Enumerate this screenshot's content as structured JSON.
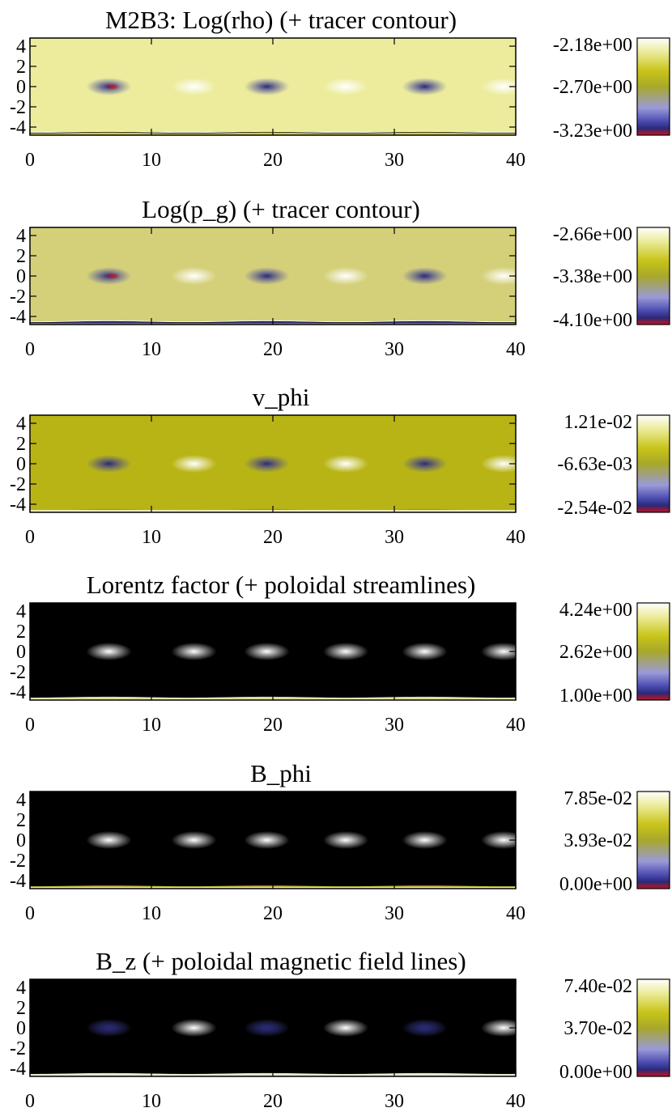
{
  "colormap": [
    "#c8101a",
    "#2a2a7a",
    "#4a4ab0",
    "#9a9ad8",
    "#a8a82a",
    "#c8c41a",
    "#ecec9c",
    "#ffffff"
  ],
  "chart_data": [
    {
      "type": "heatmap",
      "title": "M2B3: Log(rho) (+ tracer contour)",
      "xlabel": "",
      "ylabel": "",
      "xlim": [
        0,
        40
      ],
      "ylim": [
        -4.8,
        4.8
      ],
      "xticks": [
        "0",
        "10",
        "20",
        "30",
        "40"
      ],
      "yticks": [
        "4",
        "2",
        "0",
        "-2",
        "-4"
      ],
      "colorbar": {
        "min": -3.23,
        "max": -2.18,
        "labels": [
          "-2.18e+00",
          "-2.70e+00",
          "-3.23e+00"
        ]
      },
      "background": "#ecec9c",
      "overlay": "tracer contour"
    },
    {
      "type": "heatmap",
      "title": "Log(p_g) (+ tracer contour)",
      "xlabel": "",
      "ylabel": "",
      "xlim": [
        0,
        40
      ],
      "ylim": [
        -4.8,
        4.8
      ],
      "xticks": [
        "0",
        "10",
        "20",
        "30",
        "40"
      ],
      "yticks": [
        "4",
        "2",
        "0",
        "-2",
        "-4"
      ],
      "colorbar": {
        "min": -4.1,
        "max": -2.66,
        "labels": [
          "-2.66e+00",
          "-3.38e+00",
          "-4.10e+00"
        ]
      },
      "background": "#d4d07a",
      "overlay": "tracer contour"
    },
    {
      "type": "heatmap",
      "title": "v_phi",
      "xlabel": "",
      "ylabel": "",
      "xlim": [
        0,
        40
      ],
      "ylim": [
        -4.8,
        4.8
      ],
      "xticks": [
        "0",
        "10",
        "20",
        "30",
        "40"
      ],
      "yticks": [
        "4",
        "2",
        "0",
        "-2",
        "-4"
      ],
      "colorbar": {
        "min": -0.0254,
        "max": 0.0121,
        "labels": [
          "1.21e-02",
          "-6.63e-03",
          "-2.54e-02"
        ]
      },
      "background": "#b8b416",
      "overlay": "none"
    },
    {
      "type": "heatmap",
      "title": "Lorentz factor (+ poloidal streamlines)",
      "xlabel": "",
      "ylabel": "",
      "xlim": [
        0,
        40
      ],
      "ylim": [
        -4.8,
        4.8
      ],
      "xticks": [
        "0",
        "10",
        "20",
        "30",
        "40"
      ],
      "yticks": [
        "4",
        "2",
        "0",
        "-2",
        "-4"
      ],
      "colorbar": {
        "min": 1.0,
        "max": 4.24,
        "labels": [
          "4.24e+00",
          "2.62e+00",
          "1.00e+00"
        ]
      },
      "background": "#000000",
      "overlay": "poloidal streamlines"
    },
    {
      "type": "heatmap",
      "title": "B_phi",
      "xlabel": "",
      "ylabel": "",
      "xlim": [
        0,
        40
      ],
      "ylim": [
        -4.8,
        4.8
      ],
      "xticks": [
        "0",
        "10",
        "20",
        "30",
        "40"
      ],
      "yticks": [
        "4",
        "2",
        "0",
        "-2",
        "-4"
      ],
      "colorbar": {
        "min": 0.0,
        "max": 0.0785,
        "labels": [
          "7.85e-02",
          "3.93e-02",
          "0.00e+00"
        ]
      },
      "background": "#000000",
      "overlay": "none"
    },
    {
      "type": "heatmap",
      "title": "B_z (+ poloidal magnetic field lines)",
      "xlabel": "",
      "ylabel": "",
      "xlim": [
        0,
        40
      ],
      "ylim": [
        -4.8,
        4.8
      ],
      "xticks": [
        "0",
        "10",
        "20",
        "30",
        "40"
      ],
      "yticks": [
        "4",
        "2",
        "0",
        "-2",
        "-4"
      ],
      "colorbar": {
        "min": 0.0,
        "max": 0.074,
        "labels": [
          "7.40e-02",
          "3.70e-02",
          "0.00e+00"
        ]
      },
      "background": "#000000",
      "overlay": "poloidal magnetic field lines"
    }
  ]
}
